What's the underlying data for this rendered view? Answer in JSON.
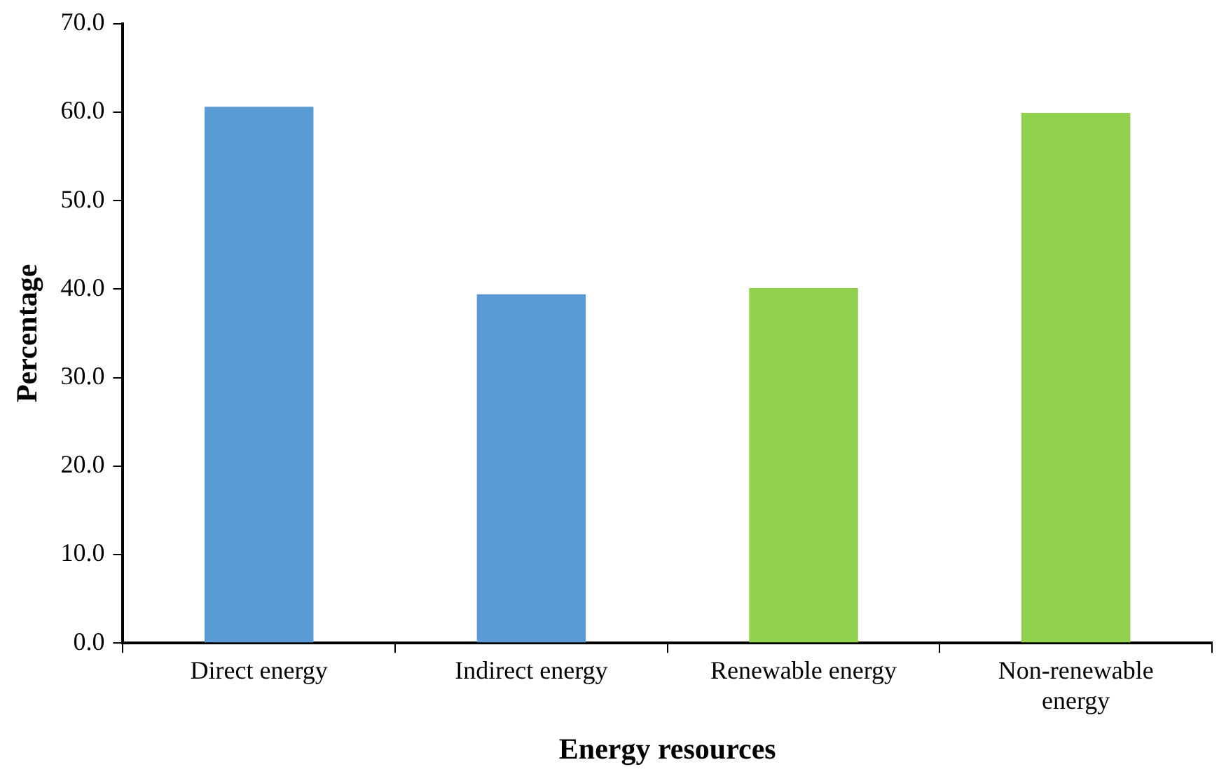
{
  "chart_data": {
    "type": "bar",
    "xlabel": "Energy resources",
    "ylabel": "Percentage",
    "categories": [
      "Direct energy",
      "Indirect energy",
      "Renewable energy",
      "Non-renewable energy"
    ],
    "values": [
      60.6,
      39.4,
      40.1,
      59.9
    ],
    "colors": [
      "#5b9bd5",
      "#5b9bd5",
      "#92d050",
      "#92d050"
    ],
    "ylim": [
      0,
      70
    ],
    "yticks": [
      {
        "value": 0,
        "label": "0.0"
      },
      {
        "value": 10,
        "label": "10.0"
      },
      {
        "value": 20,
        "label": "20.0"
      },
      {
        "value": 30,
        "label": "30.0"
      },
      {
        "value": 40,
        "label": "40.0"
      },
      {
        "value": 50,
        "label": "50.0"
      },
      {
        "value": 60,
        "label": "60.0"
      },
      {
        "value": 70,
        "label": "70.0"
      }
    ],
    "grid": false,
    "legend": false
  }
}
